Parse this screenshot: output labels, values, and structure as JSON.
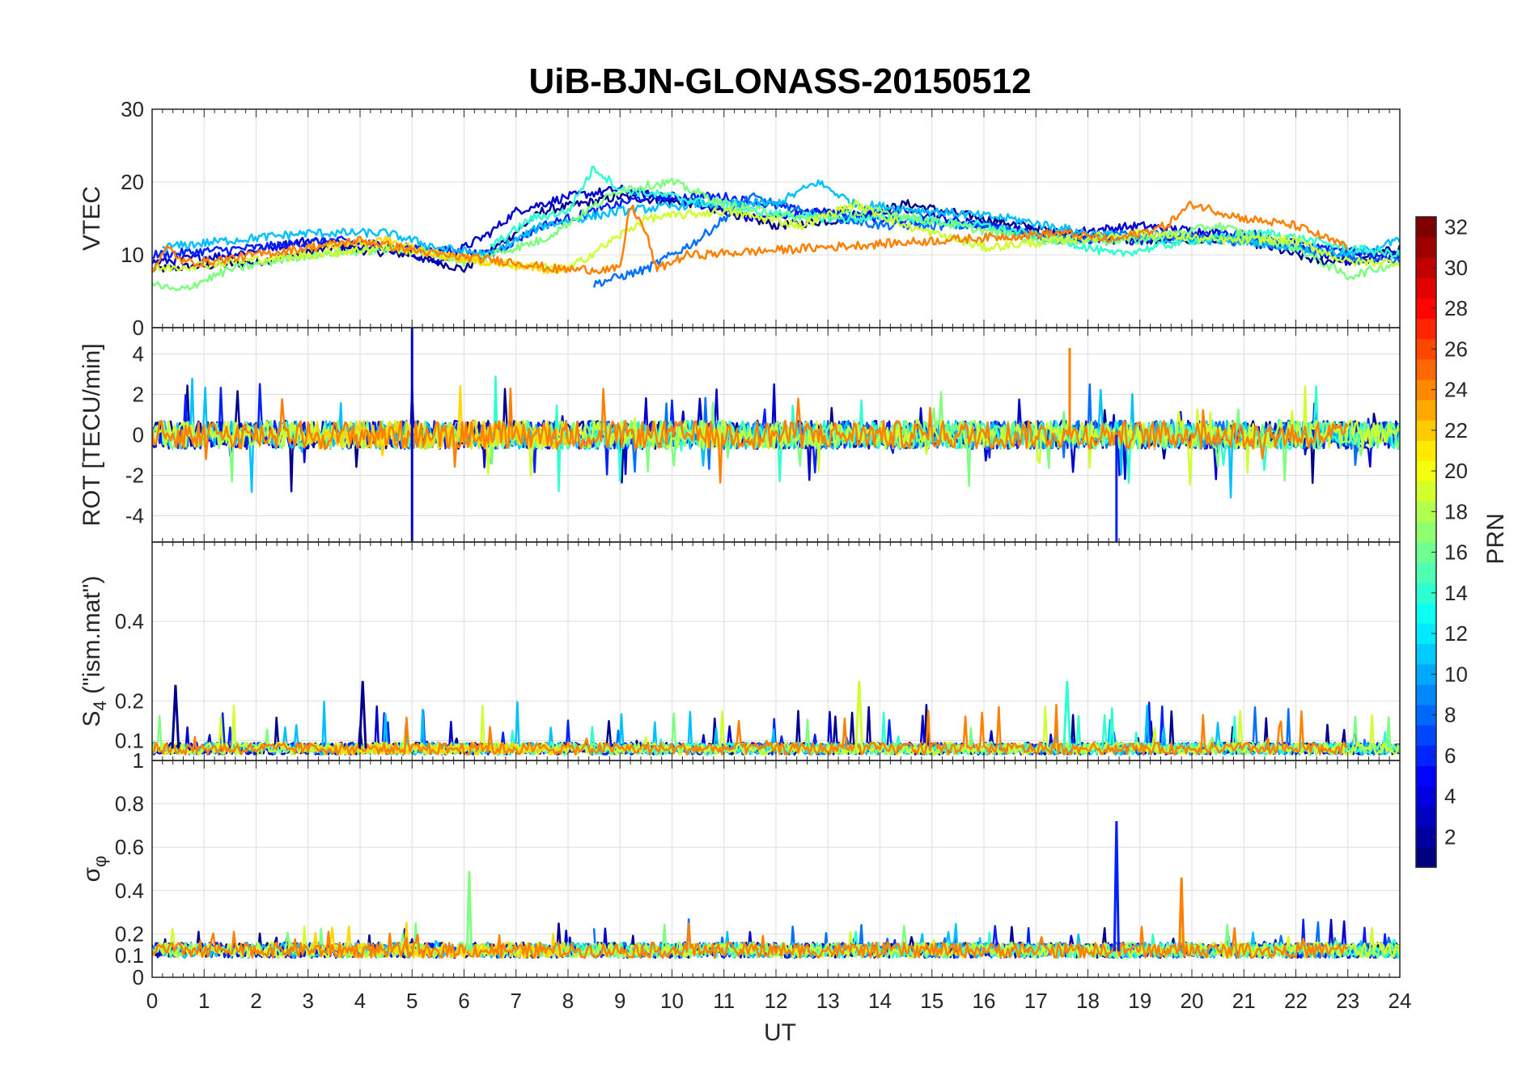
{
  "chart_data": {
    "type": "line",
    "title": "UiB-BJN-GLONASS-20150512",
    "xlabel": "UT",
    "xlim": [
      0,
      24
    ],
    "x_ticks": [
      "0",
      "1",
      "2",
      "3",
      "4",
      "5",
      "6",
      "7",
      "8",
      "9",
      "10",
      "11",
      "12",
      "13",
      "14",
      "15",
      "16",
      "17",
      "18",
      "19",
      "20",
      "21",
      "22",
      "23",
      "24"
    ],
    "panels": [
      {
        "id": "vtec",
        "ylabel": "VTEC",
        "ylim": [
          0,
          30
        ],
        "y_ticks": [
          "0",
          "10",
          "20",
          "30"
        ],
        "y_tick_values": [
          0,
          10,
          20,
          30
        ]
      },
      {
        "id": "rot",
        "ylabel": "ROT [TECU/min]",
        "ylim": [
          -5.3,
          5.3
        ],
        "y_ticks": [
          "-4",
          "-2",
          "0",
          "2",
          "4"
        ],
        "y_tick_values": [
          -4,
          -2,
          0,
          2,
          4
        ]
      },
      {
        "id": "s4",
        "ylabel": "S",
        "ylabel_sub": "4",
        "ylabel_suffix": " (\"ism.mat\")",
        "ylim": [
          0.05,
          0.6
        ],
        "y_ticks": [
          "0.1",
          "0.2",
          "0.4"
        ],
        "y_tick_values": [
          0.1,
          0.2,
          0.4
        ]
      },
      {
        "id": "sigma",
        "ylabel": "σ",
        "ylabel_sub": "φ",
        "ylabel_suffix": "",
        "ylim": [
          0,
          1
        ],
        "y_ticks": [
          "0",
          "0.1",
          "0.2",
          "0.4",
          "0.6",
          "0.8",
          "1"
        ],
        "y_tick_values": [
          0,
          0.1,
          0.2,
          0.4,
          0.6,
          0.8,
          1
        ]
      }
    ],
    "colorbar": {
      "label": "PRN",
      "range": [
        1,
        32
      ],
      "ticks": [
        "2",
        "4",
        "6",
        "8",
        "10",
        "12",
        "14",
        "16",
        "18",
        "20",
        "22",
        "24",
        "26",
        "28",
        "30",
        "32"
      ],
      "tick_values": [
        2,
        4,
        6,
        8,
        10,
        12,
        14,
        16,
        18,
        20,
        22,
        24,
        26,
        28,
        30,
        32
      ],
      "colormap": "jet"
    },
    "series": [
      {
        "prn": 1,
        "color": "#00008f",
        "vtec": [
          [
            0,
            8
          ],
          [
            2,
            9
          ],
          [
            3.5,
            11
          ],
          [
            5,
            10
          ],
          [
            6,
            8
          ],
          [
            6.8,
            12
          ],
          [
            7.5,
            16
          ],
          [
            9,
            18
          ],
          [
            10.5,
            17
          ],
          [
            12,
            14
          ],
          [
            13.5,
            15
          ],
          [
            14.5,
            17
          ],
          [
            16,
            15
          ],
          [
            17.5,
            13
          ],
          [
            19,
            12
          ],
          [
            21,
            12
          ],
          [
            22.5,
            9
          ],
          [
            23.5,
            10
          ],
          [
            24,
            11
          ]
        ]
      },
      {
        "prn": 3,
        "color": "#0000cf",
        "vtec": [
          [
            0,
            9
          ],
          [
            1.5,
            10
          ],
          [
            3,
            12
          ],
          [
            4.5,
            11
          ],
          [
            5.5,
            9
          ],
          [
            6.5,
            13
          ],
          [
            7,
            16
          ],
          [
            8,
            18
          ],
          [
            9,
            19
          ],
          [
            10.5,
            17
          ],
          [
            11.5,
            15
          ],
          [
            13,
            16
          ],
          [
            14.5,
            16
          ],
          [
            16,
            14
          ],
          [
            17.5,
            13
          ],
          [
            19,
            14
          ],
          [
            20.5,
            13
          ],
          [
            22,
            11
          ],
          [
            23,
            9
          ],
          [
            24,
            10
          ]
        ]
      },
      {
        "prn": 6,
        "color": "#0020ff",
        "vtec": [
          [
            0,
            10
          ],
          [
            2,
            11
          ],
          [
            3.5,
            12
          ],
          [
            5,
            11
          ],
          [
            6.5,
            10
          ],
          [
            7.5,
            14
          ],
          [
            8.5,
            16
          ],
          [
            9.5,
            18
          ],
          [
            11,
            18
          ],
          [
            12.5,
            16
          ],
          [
            14,
            15
          ],
          [
            16,
            14
          ],
          [
            17.5,
            12
          ],
          [
            19,
            12
          ],
          [
            21,
            13
          ],
          [
            22.5,
            11
          ],
          [
            24,
            10
          ]
        ]
      },
      {
        "prn": 9,
        "color": "#0070ff",
        "vtec": [
          [
            8.5,
            6
          ],
          [
            9.5,
            8
          ],
          [
            10.5,
            12
          ],
          [
            11,
            15
          ],
          [
            11.5,
            18
          ],
          [
            12.5,
            16
          ],
          [
            14,
            14
          ],
          [
            16,
            14
          ],
          [
            17.5,
            12
          ],
          [
            19,
            13
          ],
          [
            20.5,
            12
          ],
          [
            22,
            11
          ],
          [
            23.5,
            9
          ],
          [
            24,
            9
          ]
        ]
      },
      {
        "prn": 11,
        "color": "#00c0ff",
        "vtec": [
          [
            0.2,
            11
          ],
          [
            1.5,
            12
          ],
          [
            3,
            13
          ],
          [
            4.5,
            13
          ],
          [
            5.5,
            11
          ],
          [
            6.5,
            10
          ],
          [
            7.5,
            14
          ],
          [
            9,
            16
          ],
          [
            10.5,
            17
          ],
          [
            12,
            17
          ],
          [
            12.8,
            20
          ],
          [
            13.5,
            17
          ],
          [
            15,
            16
          ],
          [
            16.5,
            15
          ],
          [
            18,
            13
          ],
          [
            19.5,
            12
          ],
          [
            21,
            12
          ],
          [
            23,
            10
          ],
          [
            24,
            12
          ]
        ]
      },
      {
        "prn": 14,
        "color": "#30ffcf",
        "vtec": [
          [
            6.5,
            11
          ],
          [
            7.3,
            15
          ],
          [
            8,
            16
          ],
          [
            8.5,
            22
          ],
          [
            9,
            19
          ],
          [
            10,
            18
          ],
          [
            11.5,
            16
          ],
          [
            13,
            15
          ],
          [
            14.5,
            15
          ],
          [
            16,
            14
          ],
          [
            17.5,
            12
          ],
          [
            18.5,
            10
          ],
          [
            20,
            12
          ],
          [
            21.5,
            13
          ],
          [
            23,
            11
          ],
          [
            24,
            10
          ]
        ]
      },
      {
        "prn": 17,
        "color": "#7fff7f",
        "vtec": [
          [
            0,
            6
          ],
          [
            0.5,
            5
          ],
          [
            1.5,
            8
          ],
          [
            3,
            10
          ],
          [
            5,
            11
          ],
          [
            6,
            9
          ],
          [
            7.5,
            12
          ],
          [
            9,
            19
          ],
          [
            10,
            20
          ],
          [
            11,
            17
          ],
          [
            12.5,
            15
          ],
          [
            14,
            16
          ],
          [
            15.5,
            14
          ],
          [
            17,
            12
          ],
          [
            19,
            12
          ],
          [
            20.5,
            14
          ],
          [
            22,
            11
          ],
          [
            23,
            7
          ],
          [
            24,
            9
          ]
        ]
      },
      {
        "prn": 19,
        "color": "#cfff30",
        "vtec": [
          [
            0,
            8
          ],
          [
            1.5,
            9
          ],
          [
            3,
            10
          ],
          [
            4.5,
            11
          ],
          [
            5.5,
            10
          ],
          [
            6.5,
            9
          ],
          [
            8,
            8
          ],
          [
            9.5,
            15
          ],
          [
            11,
            16
          ],
          [
            12.5,
            14
          ],
          [
            13.5,
            17
          ],
          [
            14.5,
            14
          ],
          [
            16,
            11
          ],
          [
            17.5,
            12
          ],
          [
            19,
            13
          ],
          [
            20.5,
            12
          ],
          [
            22,
            12
          ],
          [
            23,
            9
          ],
          [
            24,
            9
          ]
        ]
      },
      {
        "prn": 21,
        "color": "#ffd700",
        "vtec": [
          [
            3,
            11
          ],
          [
            4.5,
            12
          ],
          [
            5.5,
            10
          ],
          [
            6.5,
            9
          ],
          [
            7.5,
            8
          ],
          [
            8,
            8
          ]
        ]
      },
      {
        "prn": 23,
        "color": "#ff8000",
        "vtec": [
          [
            0,
            8
          ],
          [
            0.3,
            11
          ],
          [
            0.6,
            9
          ],
          [
            1,
            9
          ],
          [
            4,
            12
          ],
          [
            5.5,
            10
          ],
          [
            7,
            9
          ],
          [
            7.8,
            8
          ],
          [
            8.3,
            8
          ],
          [
            9,
            8
          ],
          [
            9.2,
            17
          ],
          [
            9.5,
            13
          ],
          [
            9.7,
            8
          ],
          [
            10.3,
            10
          ],
          [
            10.5,
            10
          ],
          [
            17.5,
            13
          ],
          [
            18.5,
            12
          ],
          [
            19.5,
            14
          ],
          [
            20,
            17
          ],
          [
            21,
            15
          ],
          [
            22,
            14
          ],
          [
            23,
            11
          ]
        ]
      }
    ],
    "events": [
      {
        "x": 5.0,
        "rot": -5.3,
        "rot2": 5.3,
        "color": "#0000cf"
      },
      {
        "x": 18.55,
        "rot": -5.3,
        "sigma": 0.72,
        "color": "#0020ff"
      },
      {
        "x": 17.65,
        "rot": 4.3,
        "color": "#ff8000"
      },
      {
        "x": 19.8,
        "sigma": 0.46,
        "color": "#ff8000"
      },
      {
        "x": 6.1,
        "sigma": 0.49,
        "color": "#7fff7f"
      },
      {
        "x": 0.45,
        "s4": 0.24,
        "color": "#00008f"
      },
      {
        "x": 4.05,
        "s4": 0.25,
        "color": "#00008f"
      },
      {
        "x": 13.6,
        "s4": 0.25,
        "color": "#cfff30"
      },
      {
        "x": 17.6,
        "s4": 0.25,
        "color": "#30ffcf"
      }
    ]
  }
}
